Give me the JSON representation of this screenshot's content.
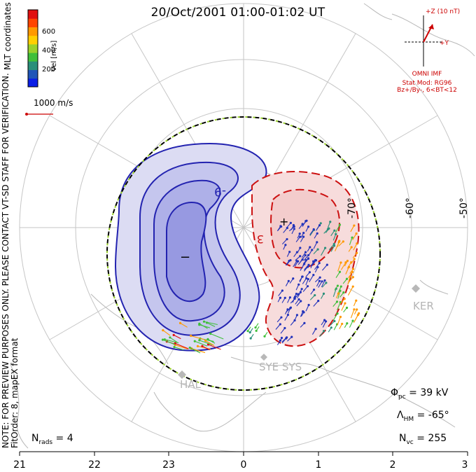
{
  "title": "20/Oct/2001 01:00-01:02 UT",
  "side_note": {
    "line1": "NOTE: FOR PREVIEW PURPOSES ONLY. PLEASE CONTACT VT-SD STAFF FOR VERIFICATION.",
    "line2": "FitOrder: 8, mapEX format"
  },
  "coord_label": "MLT coordinates",
  "colorbar": {
    "axis_label": "Vel [m/s]",
    "ticks": [
      "600",
      "400",
      "200"
    ],
    "colors": [
      "#0a1ee6",
      "#1f55b8",
      "#2a8f7a",
      "#3fbf3a",
      "#9ad12a",
      "#ffcf00",
      "#ff9900",
      "#ff4400",
      "#e01010"
    ]
  },
  "reference_vector": {
    "label": "1000 m/s"
  },
  "imf": {
    "z_label": "+Z (10 nT)",
    "y_label": "+Y",
    "source": "OMNI IMF",
    "model_line1": "Stat Mod: RG96",
    "model_line2": "Bz+/By-, 6<BT<12"
  },
  "mlat_labels": [
    "-70°",
    "-60°",
    "-50°"
  ],
  "contour_labels": {
    "negative": "-9",
    "positive": "3"
  },
  "cell_markers": {
    "min": "−",
    "max": "+"
  },
  "sites": [
    "KER",
    "HAL",
    "SYE SYS"
  ],
  "stats": {
    "phi_pc": "39 kV",
    "lambda_hm": "-65°",
    "n_vc": "255",
    "n_rads": "4"
  },
  "mlt_ticks": [
    "21",
    "22",
    "23",
    "0",
    "1",
    "2",
    "3"
  ],
  "colors": {
    "negative_contour": "#1a1aaa",
    "positive_contour": "#cc0000",
    "grid": "#bdbdbd",
    "coastline": "#b0b0b0"
  }
}
